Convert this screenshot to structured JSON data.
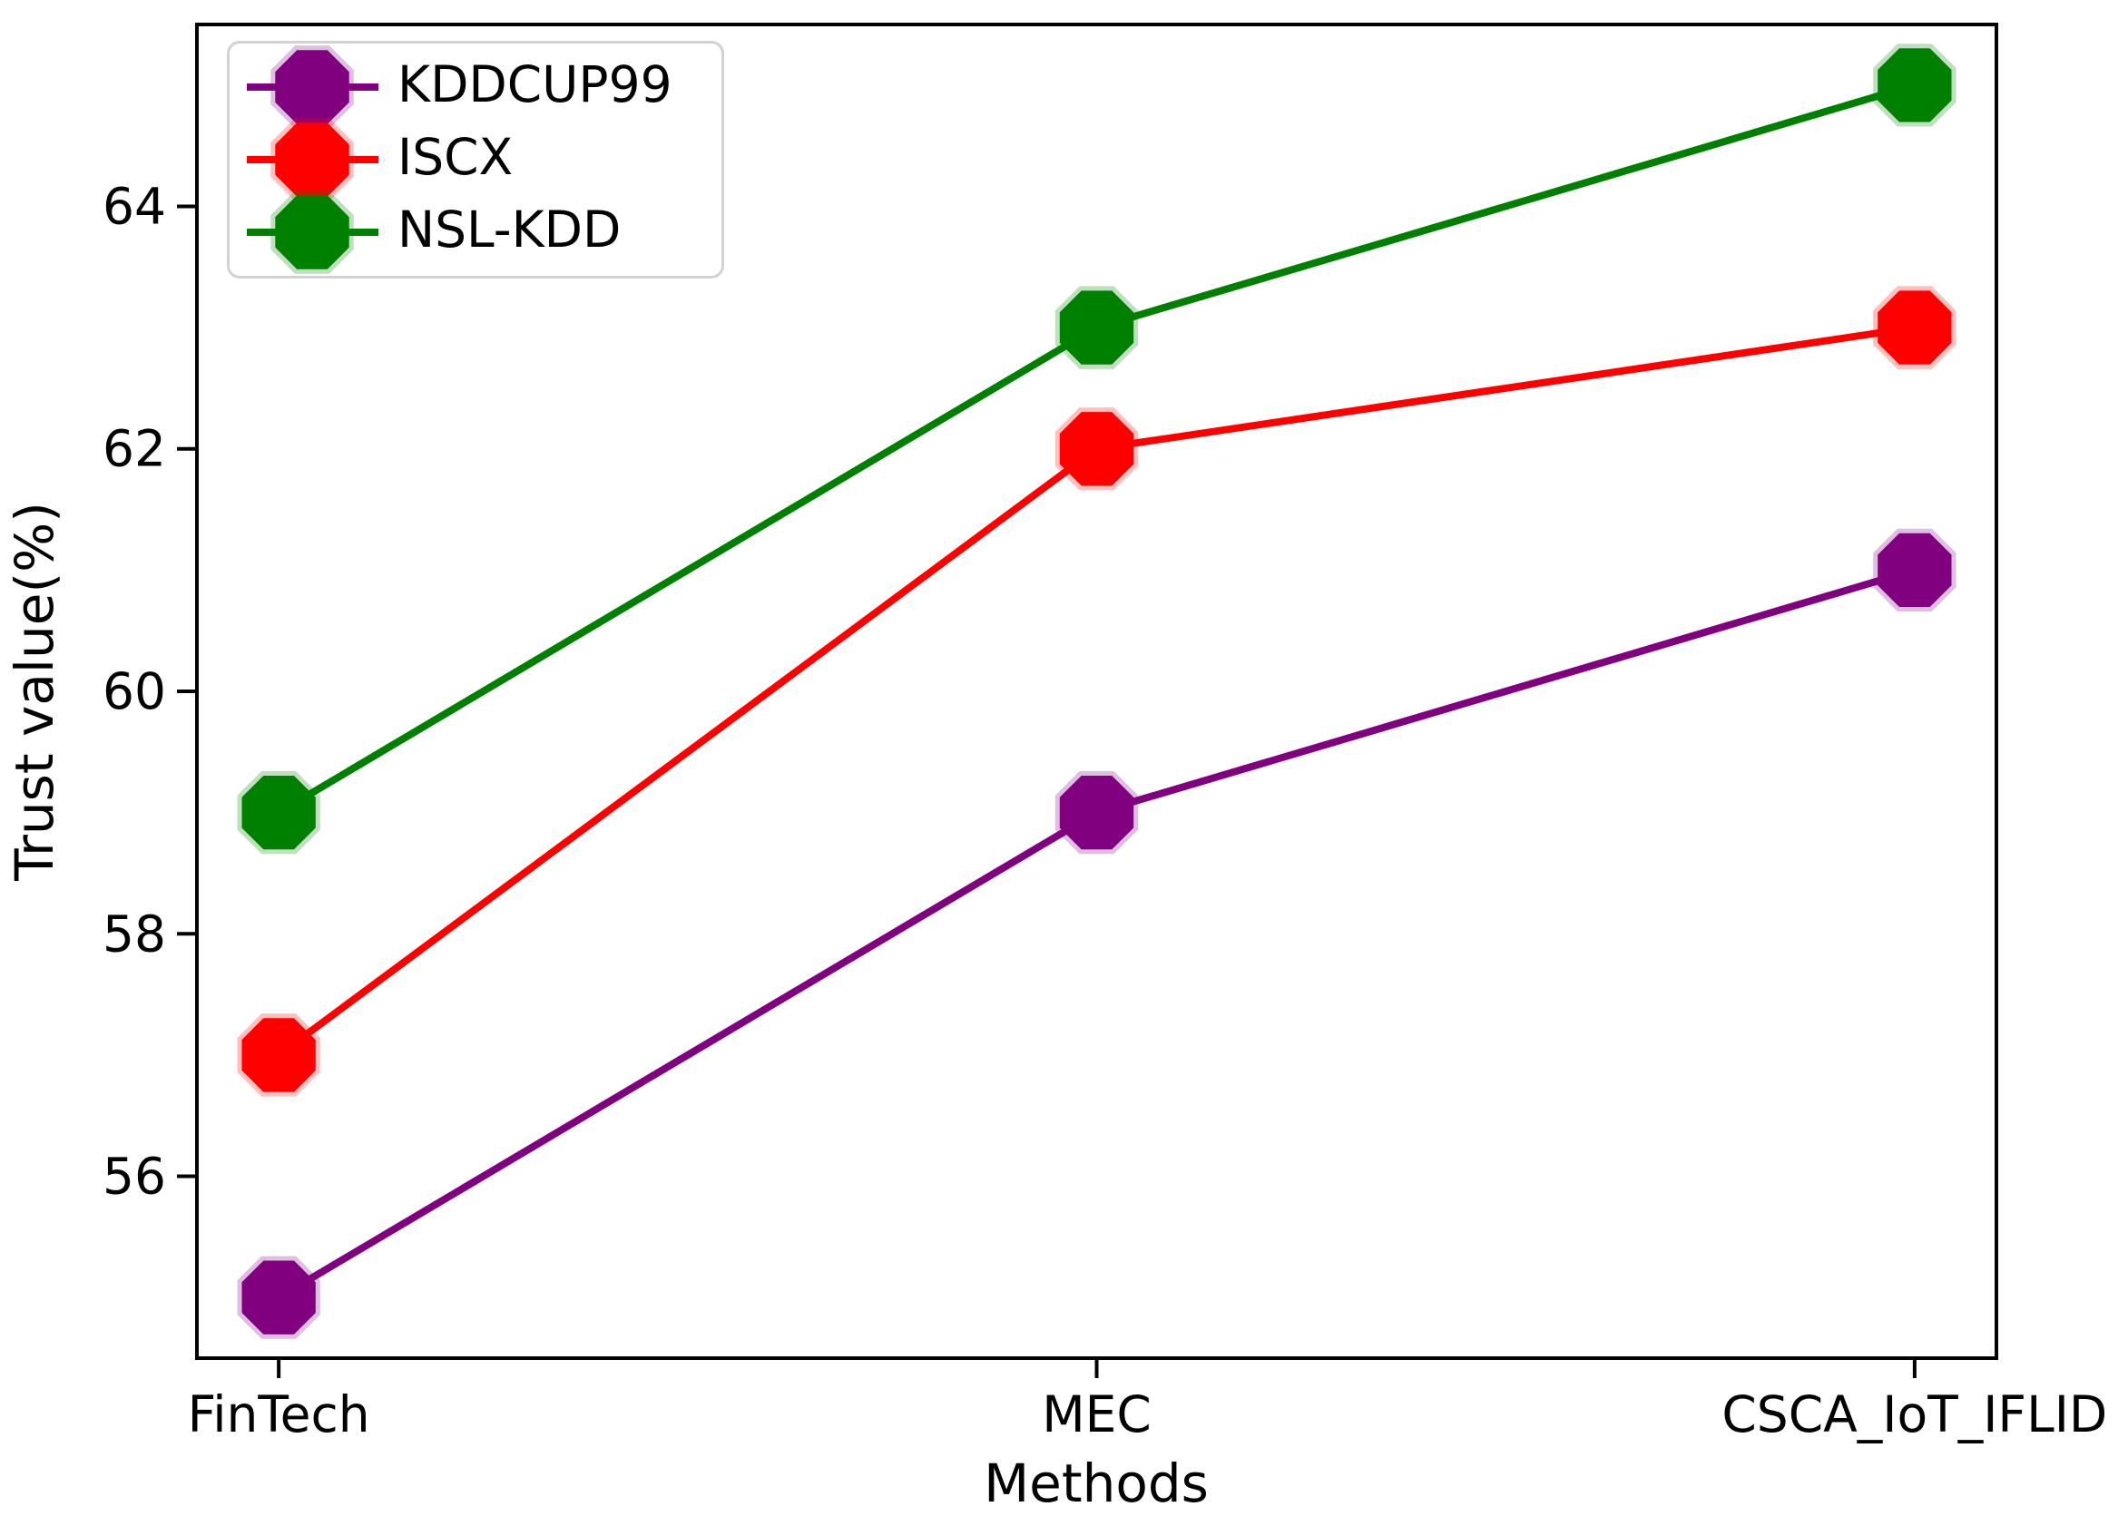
{
  "figure": {
    "background": "#ffffff",
    "frame_color": "#000000"
  },
  "chart_data": {
    "type": "line",
    "title": "",
    "xlabel": "Methods",
    "ylabel": "Trust value(%)",
    "categories": [
      "FinTech",
      "MEC",
      "CSCA_IoT_IFLID"
    ],
    "series": [
      {
        "name": "KDDCUP99",
        "color": "#800080",
        "values": [
          55,
          59,
          61
        ]
      },
      {
        "name": "ISCX",
        "color": "#ff0000",
        "values": [
          57,
          62,
          63
        ]
      },
      {
        "name": "NSL-KDD",
        "color": "#008000",
        "values": [
          59,
          63,
          65
        ]
      }
    ],
    "y_ticks": [
      56,
      58,
      60,
      62,
      64
    ],
    "ylim": [
      54.5,
      65.5
    ],
    "xlim": [
      -0.1,
      2.1
    ],
    "grid": false,
    "legend_position": "upper-left",
    "marker": "octagon",
    "line_width": 8,
    "marker_radius": 44
  }
}
